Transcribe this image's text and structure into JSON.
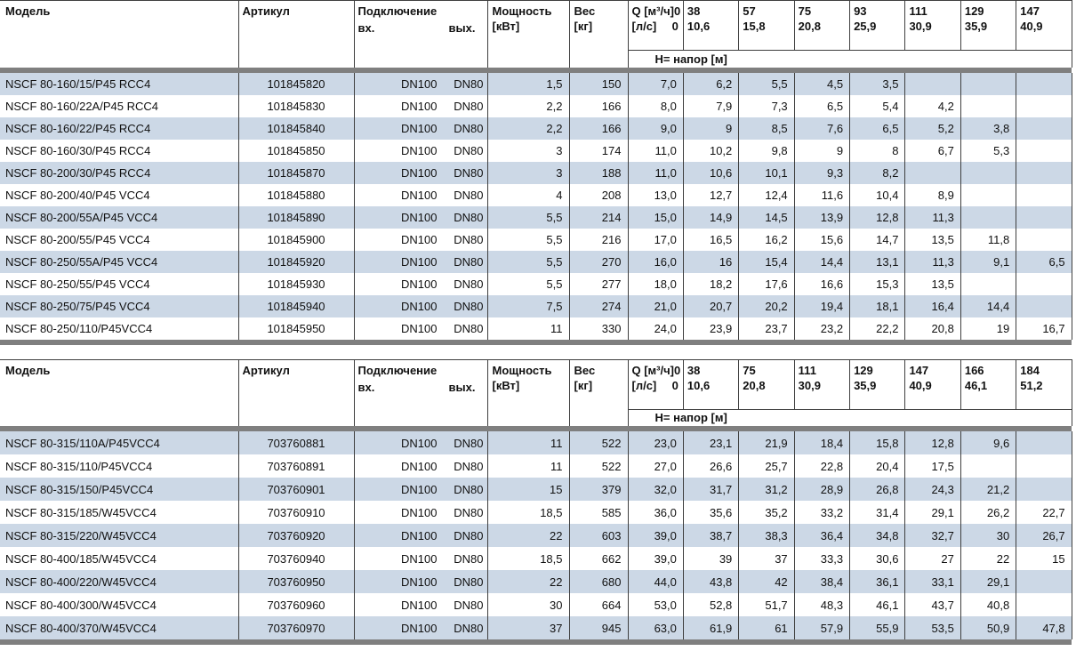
{
  "tables": [
    {
      "headers": {
        "model": "Модель",
        "article": "Артикул",
        "connection": "Подключение",
        "inlet": "вх.",
        "outlet": "вых.",
        "power1": "Мощность",
        "power2": "[кВт]",
        "weight1": "Вес",
        "weight2": "[кг]",
        "q_label": "Q [м³/ч]",
        "ls_label": "[л/с]",
        "q0_m3h": "0",
        "q0_ls": "0",
        "head_label": "H= напор [м]"
      },
      "q_cols": [
        {
          "m3h": "38",
          "ls": "10,6"
        },
        {
          "m3h": "57",
          "ls": "15,8"
        },
        {
          "m3h": "75",
          "ls": "20,8"
        },
        {
          "m3h": "93",
          "ls": "25,9"
        },
        {
          "m3h": "111",
          "ls": "30,9"
        },
        {
          "m3h": "129",
          "ls": "35,9"
        },
        {
          "m3h": "147",
          "ls": "40,9"
        }
      ],
      "rows": [
        {
          "model": "NSCF 80-160/15/P45 RCC4",
          "article": "101845820",
          "inlet": "DN100",
          "outlet": "DN80",
          "power": "1,5",
          "weight": "150",
          "h": [
            "7,0",
            "6,2",
            "5,5",
            "4,5",
            "3,5",
            "",
            "",
            ""
          ]
        },
        {
          "model": "NSCF 80-160/22A/P45 RCC4",
          "article": "101845830",
          "inlet": "DN100",
          "outlet": "DN80",
          "power": "2,2",
          "weight": "166",
          "h": [
            "8,0",
            "7,9",
            "7,3",
            "6,5",
            "5,4",
            "4,2",
            "",
            ""
          ]
        },
        {
          "model": "NSCF 80-160/22/P45 RCC4",
          "article": "101845840",
          "inlet": "DN100",
          "outlet": "DN80",
          "power": "2,2",
          "weight": "166",
          "h": [
            "9,0",
            "9",
            "8,5",
            "7,6",
            "6,5",
            "5,2",
            "3,8",
            ""
          ]
        },
        {
          "model": "NSCF 80-160/30/P45 RCC4",
          "article": "101845850",
          "inlet": "DN100",
          "outlet": "DN80",
          "power": "3",
          "weight": "174",
          "h": [
            "11,0",
            "10,2",
            "9,8",
            "9",
            "8",
            "6,7",
            "5,3",
            ""
          ]
        },
        {
          "model": "NSCF 80-200/30/P45 RCC4",
          "article": "101845870",
          "inlet": "DN100",
          "outlet": "DN80",
          "power": "3",
          "weight": "188",
          "h": [
            "11,0",
            "10,6",
            "10,1",
            "9,3",
            "8,2",
            "",
            "",
            ""
          ]
        },
        {
          "model": "NSCF 80-200/40/P45 VCC4",
          "article": "101845880",
          "inlet": "DN100",
          "outlet": "DN80",
          "power": "4",
          "weight": "208",
          "h": [
            "13,0",
            "12,7",
            "12,4",
            "11,6",
            "10,4",
            "8,9",
            "",
            ""
          ]
        },
        {
          "model": "NSCF 80-200/55A/P45 VCC4",
          "article": "101845890",
          "inlet": "DN100",
          "outlet": "DN80",
          "power": "5,5",
          "weight": "214",
          "h": [
            "15,0",
            "14,9",
            "14,5",
            "13,9",
            "12,8",
            "11,3",
            "",
            ""
          ]
        },
        {
          "model": "NSCF 80-200/55/P45 VCC4",
          "article": "101845900",
          "inlet": "DN100",
          "outlet": "DN80",
          "power": "5,5",
          "weight": "216",
          "h": [
            "17,0",
            "16,5",
            "16,2",
            "15,6",
            "14,7",
            "13,5",
            "11,8",
            ""
          ]
        },
        {
          "model": "NSCF 80-250/55A/P45 VCC4",
          "article": "101845920",
          "inlet": "DN100",
          "outlet": "DN80",
          "power": "5,5",
          "weight": "270",
          "h": [
            "16,0",
            "16",
            "15,4",
            "14,4",
            "13,1",
            "11,3",
            "9,1",
            "6,5"
          ]
        },
        {
          "model": "NSCF 80-250/55/P45 VCC4",
          "article": "101845930",
          "inlet": "DN100",
          "outlet": "DN80",
          "power": "5,5",
          "weight": "277",
          "h": [
            "18,0",
            "18,2",
            "17,6",
            "16,6",
            "15,3",
            "13,5",
            "",
            ""
          ]
        },
        {
          "model": "NSCF 80-250/75/P45 VCC4",
          "article": "101845940",
          "inlet": "DN100",
          "outlet": "DN80",
          "power": "7,5",
          "weight": "274",
          "h": [
            "21,0",
            "20,7",
            "20,2",
            "19,4",
            "18,1",
            "16,4",
            "14,4",
            ""
          ]
        },
        {
          "model": "NSCF 80-250/110/P45VCC4",
          "article": "101845950",
          "inlet": "DN100",
          "outlet": "DN80",
          "power": "11",
          "weight": "330",
          "h": [
            "24,0",
            "23,9",
            "23,7",
            "23,2",
            "22,2",
            "20,8",
            "19",
            "16,7"
          ]
        }
      ]
    },
    {
      "headers": {
        "model": "Модель",
        "article": "Артикул",
        "connection": "Подключение",
        "inlet": "вх.",
        "outlet": "вых.",
        "power1": "Мощность",
        "power2": "[кВт]",
        "weight1": "Вес",
        "weight2": "[кг]",
        "q_label": "Q [м³/ч]",
        "ls_label": "[л/с]",
        "q0_m3h": "0",
        "q0_ls": "0",
        "head_label": "H= напор [м]"
      },
      "q_cols": [
        {
          "m3h": "38",
          "ls": "10,6"
        },
        {
          "m3h": "75",
          "ls": "20,8"
        },
        {
          "m3h": "111",
          "ls": "30,9"
        },
        {
          "m3h": "129",
          "ls": "35,9"
        },
        {
          "m3h": "147",
          "ls": "40,9"
        },
        {
          "m3h": "166",
          "ls": "46,1"
        },
        {
          "m3h": "184",
          "ls": "51,2"
        }
      ],
      "rows": [
        {
          "model": "NSCF 80-315/110A/P45VCC4",
          "article": "703760881",
          "inlet": "DN100",
          "outlet": "DN80",
          "power": "11",
          "weight": "522",
          "h": [
            "23,0",
            "23,1",
            "21,9",
            "18,4",
            "15,8",
            "12,8",
            "9,6",
            ""
          ]
        },
        {
          "model": "NSCF 80-315/110/P45VCC4",
          "article": "703760891",
          "inlet": "DN100",
          "outlet": "DN80",
          "power": "11",
          "weight": "522",
          "h": [
            "27,0",
            "26,6",
            "25,7",
            "22,8",
            "20,4",
            "17,5",
            "",
            ""
          ]
        },
        {
          "model": "NSCF 80-315/150/P45VCC4",
          "article": "703760901",
          "inlet": "DN100",
          "outlet": "DN80",
          "power": "15",
          "weight": "379",
          "h": [
            "32,0",
            "31,7",
            "31,2",
            "28,9",
            "26,8",
            "24,3",
            "21,2",
            ""
          ]
        },
        {
          "model": "NSCF 80-315/185/W45VCC4",
          "article": "703760910",
          "inlet": "DN100",
          "outlet": "DN80",
          "power": "18,5",
          "weight": "585",
          "h": [
            "36,0",
            "35,6",
            "35,2",
            "33,2",
            "31,4",
            "29,1",
            "26,2",
            "22,7"
          ]
        },
        {
          "model": "NSCF 80-315/220/W45VCC4",
          "article": "703760920",
          "inlet": "DN100",
          "outlet": "DN80",
          "power": "22",
          "weight": "603",
          "h": [
            "39,0",
            "38,7",
            "38,3",
            "36,4",
            "34,8",
            "32,7",
            "30",
            "26,7"
          ]
        },
        {
          "model": "NSCF 80-400/185/W45VCC4",
          "article": "703760940",
          "inlet": "DN100",
          "outlet": "DN80",
          "power": "18,5",
          "weight": "662",
          "h": [
            "39,0",
            "39",
            "37",
            "33,3",
            "30,6",
            "27",
            "22",
            "15"
          ]
        },
        {
          "model": "NSCF 80-400/220/W45VCC4",
          "article": "703760950",
          "inlet": "DN100",
          "outlet": "DN80",
          "power": "22",
          "weight": "680",
          "h": [
            "44,0",
            "43,8",
            "42",
            "38,4",
            "36,1",
            "33,1",
            "29,1",
            ""
          ]
        },
        {
          "model": "NSCF 80-400/300/W45VCC4",
          "article": "703760960",
          "inlet": "DN100",
          "outlet": "DN80",
          "power": "30",
          "weight": "664",
          "h": [
            "53,0",
            "52,8",
            "51,7",
            "48,3",
            "46,1",
            "43,7",
            "40,8",
            ""
          ]
        },
        {
          "model": "NSCF 80-400/370/W45VCC4",
          "article": "703760970",
          "inlet": "DN100",
          "outlet": "DN80",
          "power": "37",
          "weight": "945",
          "h": [
            "63,0",
            "61,9",
            "61",
            "57,9",
            "55,9",
            "53,5",
            "50,9",
            "47,8"
          ]
        }
      ]
    }
  ],
  "colors": {
    "row_stripe": "#ccd8e6",
    "separator_bar": "#7f7f7f",
    "grid_line": "#3f3f3f"
  }
}
